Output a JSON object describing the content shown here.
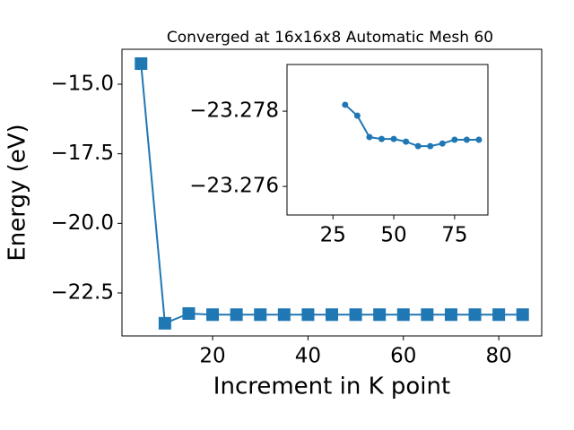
{
  "chart_data": [
    {
      "type": "line",
      "title": "Converged at 16x16x8 Automatic Mesh 60",
      "x_label": "Increment in K point",
      "y_label": "Energy (eV)",
      "x": [
        5,
        10,
        15,
        20,
        25,
        30,
        35,
        40,
        45,
        50,
        55,
        60,
        65,
        70,
        75,
        80,
        85
      ],
      "series": [
        {
          "color": "#1f77b4",
          "marker": "square",
          "values": [
            -14.26,
            -23.59,
            -23.24,
            -23.28,
            -23.28,
            -23.28,
            -23.28,
            -23.28,
            -23.28,
            -23.28,
            -23.28,
            -23.28,
            -23.28,
            -23.28,
            -23.28,
            -23.28,
            -23.28
          ]
        }
      ],
      "xlim": [
        1,
        89
      ],
      "ylim": [
        -24.045,
        -13.745
      ],
      "xticks": [
        20,
        40,
        60,
        80
      ],
      "yticks": [
        {
          "value": -15.0,
          "label": "−15.0"
        },
        {
          "value": -17.5,
          "label": "−17.5"
        },
        {
          "value": -20.0,
          "label": "−20.0"
        },
        {
          "value": -22.5,
          "label": "−22.5"
        }
      ]
    },
    {
      "type": "line",
      "x": [
        30,
        35,
        40,
        45,
        50,
        55,
        60,
        65,
        70,
        75,
        80,
        85
      ],
      "series": [
        {
          "color": "#1f77b4",
          "marker": "circle",
          "values": [
            -23.27817,
            -23.27788,
            -23.27731,
            -23.27726,
            -23.27726,
            -23.27719,
            -23.27707,
            -23.27707,
            -23.27714,
            -23.27724,
            -23.27724,
            -23.27724
          ]
        }
      ],
      "xlim": [
        6.1,
        88.7
      ],
      "ylim": [
        -23.27524,
        -23.27924
      ],
      "xticks": [
        25,
        50,
        75
      ],
      "yticks": [
        {
          "value": -23.278,
          "label": "−23.278"
        },
        {
          "value": -23.276,
          "label": "−23.276"
        }
      ]
    }
  ]
}
